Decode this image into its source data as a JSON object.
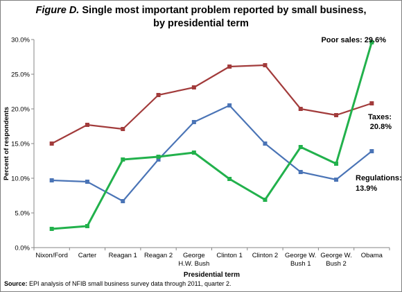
{
  "title": {
    "figure": "Figure D.",
    "line1": "Single most important problem reported by small business,",
    "line2": "by presidential term"
  },
  "source": {
    "label": "Source:",
    "text": "EPI analysis of NFIB small business survey data through 2011, quarter 2."
  },
  "chart_data": {
    "type": "line",
    "xlabel": "Presidential term",
    "ylabel": "Percent of respondents",
    "ylim": [
      0,
      30
    ],
    "yticks": [
      "0.0%",
      "5.0%",
      "10.0%",
      "15.0%",
      "20.0%",
      "25.0%",
      "30.0%"
    ],
    "grid": false,
    "categories": [
      [
        "Nixon/Ford"
      ],
      [
        "Carter"
      ],
      [
        "Reagan 1"
      ],
      [
        "Reagan 2"
      ],
      [
        "George",
        "H.W. Bush"
      ],
      [
        "Clinton 1"
      ],
      [
        "Clinton 2"
      ],
      [
        "George W.",
        "Bush 1"
      ],
      [
        "George W.",
        "Bush 2"
      ],
      [
        "Obama"
      ]
    ],
    "series": [
      {
        "key": "taxes",
        "color": "#a23b3b",
        "values": [
          15.0,
          17.7,
          17.1,
          22.0,
          23.1,
          26.1,
          26.3,
          20.0,
          19.1,
          20.8
        ]
      },
      {
        "key": "regulations",
        "color": "#4a74b6",
        "values": [
          9.7,
          9.5,
          6.7,
          12.7,
          18.1,
          20.5,
          15.0,
          10.9,
          9.8,
          13.9
        ]
      },
      {
        "key": "poor_sales",
        "color": "#22b14c",
        "values": [
          2.7,
          3.1,
          12.7,
          13.1,
          13.7,
          9.9,
          6.9,
          14.5,
          12.1,
          29.6
        ]
      }
    ],
    "annotations": {
      "poor_sales": "Poor sales: 29.6%",
      "taxes_1": "Taxes:",
      "taxes_2": "20.8%",
      "regulations_1": "Regulations:",
      "regulations_2": "13.9%"
    }
  }
}
